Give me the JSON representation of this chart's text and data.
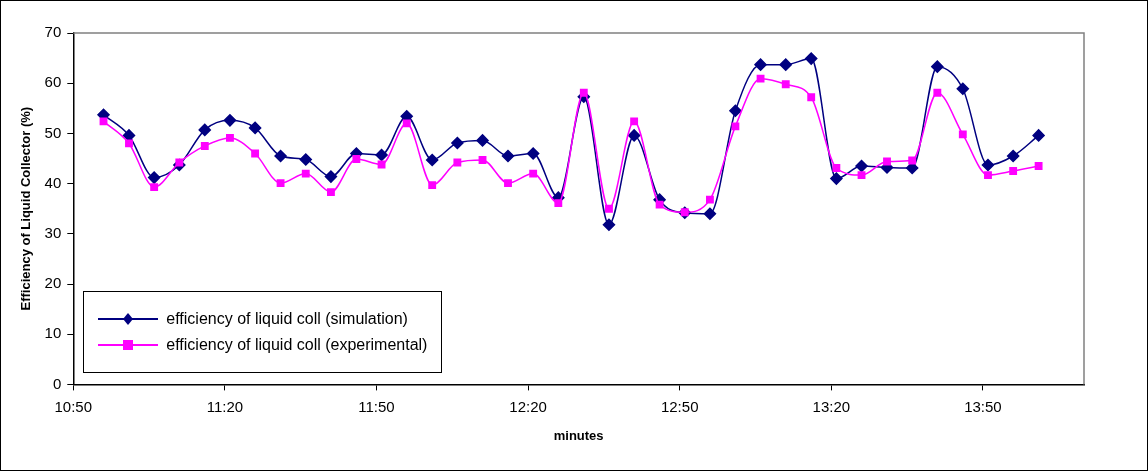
{
  "chart_data": {
    "type": "line",
    "xlabel": "minutes",
    "ylabel": "Efficiency of Liquid Collector (%)",
    "x": [
      10.933,
      11.017,
      11.1,
      11.183,
      11.267,
      11.35,
      11.433,
      11.517,
      11.6,
      11.683,
      11.767,
      11.85,
      11.933,
      12.017,
      12.1,
      12.183,
      12.267,
      12.35,
      12.433,
      12.517,
      12.6,
      12.683,
      12.767,
      12.85,
      12.933,
      13.017,
      13.1,
      13.183,
      13.267,
      13.35,
      13.433,
      13.517,
      13.6,
      13.683,
      13.767,
      13.85,
      13.933,
      14.017
    ],
    "series": [
      {
        "name": "efficiency of liquid coll (simulation)",
        "color": "#000080",
        "marker": "diamond",
        "values": [
          53.7,
          49.6,
          41.2,
          43.7,
          50.7,
          52.6,
          51.1,
          45.5,
          44.8,
          41.4,
          46.0,
          45.7,
          53.4,
          44.7,
          48.1,
          48.6,
          45.5,
          46.0,
          37.2,
          57.3,
          31.8,
          49.6,
          36.8,
          34.2,
          34.0,
          54.5,
          63.7,
          63.7,
          64.9,
          41.0,
          43.5,
          43.2,
          43.1,
          63.3,
          58.9,
          43.7,
          45.5,
          49.6
        ]
      },
      {
        "name": "efficiency of liquid coll (experimental)",
        "color": "#ff00ff",
        "marker": "square",
        "values": [
          52.4,
          48.0,
          39.3,
          44.2,
          47.5,
          49.1,
          46.0,
          40.1,
          42.0,
          38.3,
          44.9,
          43.8,
          52.0,
          39.7,
          44.2,
          44.7,
          40.1,
          42.0,
          36.1,
          58.1,
          35.0,
          52.4,
          35.8,
          34.3,
          36.8,
          51.4,
          60.9,
          59.8,
          57.2,
          43.1,
          41.7,
          44.4,
          44.6,
          58.1,
          49.8,
          41.7,
          42.5,
          43.5
        ]
      }
    ],
    "xlim": [
      10.8333,
      14.1667
    ],
    "xticks": [
      {
        "value": 10.8333,
        "label": "10:50"
      },
      {
        "value": 11.3333,
        "label": "11:20"
      },
      {
        "value": 11.8333,
        "label": "11:50"
      },
      {
        "value": 12.3333,
        "label": "12:20"
      },
      {
        "value": 12.8333,
        "label": "12:50"
      },
      {
        "value": 13.3333,
        "label": "13:20"
      },
      {
        "value": 13.8333,
        "label": "13:50"
      }
    ],
    "ylim": [
      0,
      70
    ],
    "yticks": [
      0,
      10,
      20,
      30,
      40,
      50,
      60,
      70
    ],
    "legend": "bottom left"
  }
}
